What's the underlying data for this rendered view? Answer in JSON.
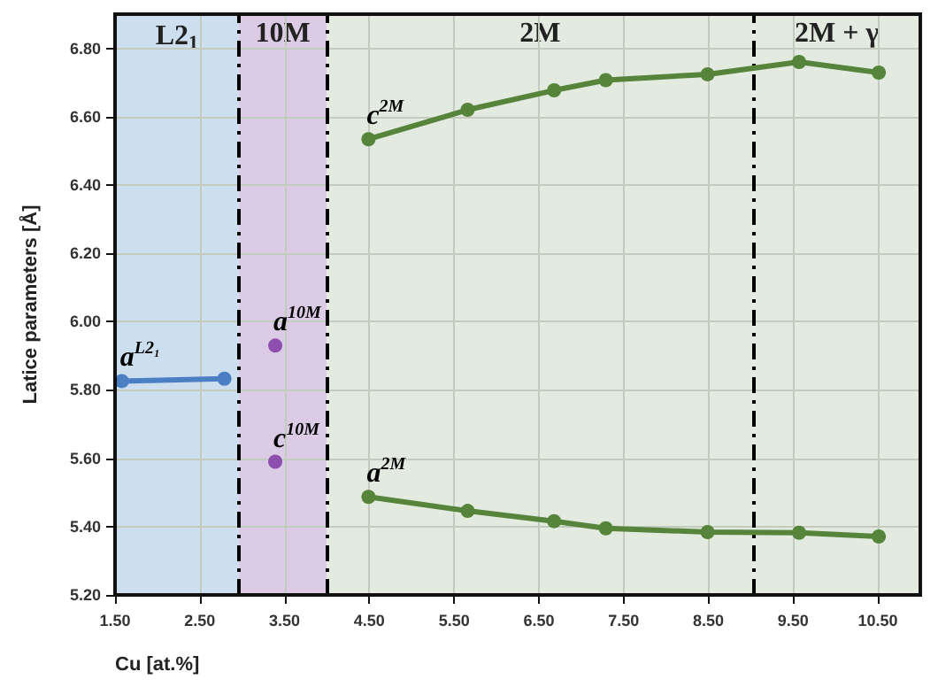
{
  "chart_data": {
    "type": "line",
    "xlabel": "Cu [at.%]",
    "ylabel": "Latice parameters [Å]",
    "xlim": [
      1.5,
      11.0
    ],
    "xticks": [
      {
        "value": 1.5,
        "label": "1.50"
      },
      {
        "value": 2.5,
        "label": "2.50"
      },
      {
        "value": 3.5,
        "label": "3.50"
      },
      {
        "value": 4.5,
        "label": "4.50"
      },
      {
        "value": 5.5,
        "label": "5.50"
      },
      {
        "value": 6.5,
        "label": "6.50"
      },
      {
        "value": 7.5,
        "label": "7.50"
      },
      {
        "value": 8.5,
        "label": "8.50"
      },
      {
        "value": 9.5,
        "label": "9.50"
      },
      {
        "value": 10.5,
        "label": "10.50"
      }
    ],
    "ylim": [
      5.2,
      6.9
    ],
    "yticks": [
      {
        "value": 5.2,
        "label": "5.20"
      },
      {
        "value": 5.4,
        "label": "5.40"
      },
      {
        "value": 5.6,
        "label": "5.60"
      },
      {
        "value": 5.8,
        "label": "5.80"
      },
      {
        "value": 6.0,
        "label": "6.00"
      },
      {
        "value": 6.2,
        "label": "6.20"
      },
      {
        "value": 6.4,
        "label": "6.40"
      },
      {
        "value": 6.6,
        "label": "6.60"
      },
      {
        "value": 6.8,
        "label": "6.80"
      }
    ],
    "grid": true,
    "legend": false,
    "marker": "circle",
    "series": [
      {
        "type": "line",
        "color": "#4a7fc4",
        "x": [
          1.58,
          2.79
        ],
        "values": [
          5.826,
          5.833
        ]
      },
      {
        "type": "scatter",
        "color": "#7b2fa0",
        "x": [
          3.39,
          3.39
        ],
        "values": [
          5.93,
          5.59
        ]
      },
      {
        "type": "line",
        "color": "#55843a",
        "x": [
          4.49,
          5.66,
          6.68,
          7.29,
          8.49,
          9.57,
          10.51
        ],
        "values": [
          6.534,
          6.62,
          6.677,
          6.707,
          6.724,
          6.76,
          6.729
        ]
      },
      {
        "type": "line",
        "color": "#55843a",
        "x": [
          4.49,
          5.66,
          6.68,
          7.29,
          8.49,
          9.57,
          10.51
        ],
        "values": [
          5.487,
          5.446,
          5.416,
          5.395,
          5.384,
          5.382,
          5.371
        ]
      }
    ],
    "bands": [
      {
        "axis": "x",
        "from": 1.5,
        "to": 2.96,
        "label": "L2$_{1}$",
        "color": "#cddfef"
      },
      {
        "axis": "x",
        "from": 2.96,
        "to": 4.0,
        "label": "10M",
        "color": "#dccbe5"
      },
      {
        "axis": "x",
        "from": 4.0,
        "to": 9.03,
        "label": "2M",
        "color": "#e3eadf"
      },
      {
        "axis": "x",
        "from": 9.03,
        "to": 11.0,
        "label": "2M + γ",
        "color": "#e3eadf"
      }
    ],
    "ref_lines": [
      {
        "axis": "x",
        "value": 2.96,
        "color": "#000000",
        "line_style": "dashed"
      },
      {
        "axis": "x",
        "value": 4.0,
        "color": "#000000",
        "line_style": "dashed"
      },
      {
        "axis": "x",
        "value": 9.03,
        "color": "#000000",
        "line_style": "dashed"
      }
    ],
    "annotations": [
      {
        "text": "a$^{L2₁}$",
        "x": 1.58,
        "y": 5.826
      },
      {
        "text": "a$^{10M}$",
        "x": 3.39,
        "y": 5.93
      },
      {
        "text": "c$^{10M}$",
        "x": 3.39,
        "y": 5.59
      },
      {
        "text": "c$^{2M}$",
        "x": 4.49,
        "y": 6.534
      },
      {
        "text": "a$^{2M}$",
        "x": 4.49,
        "y": 5.487
      }
    ]
  }
}
